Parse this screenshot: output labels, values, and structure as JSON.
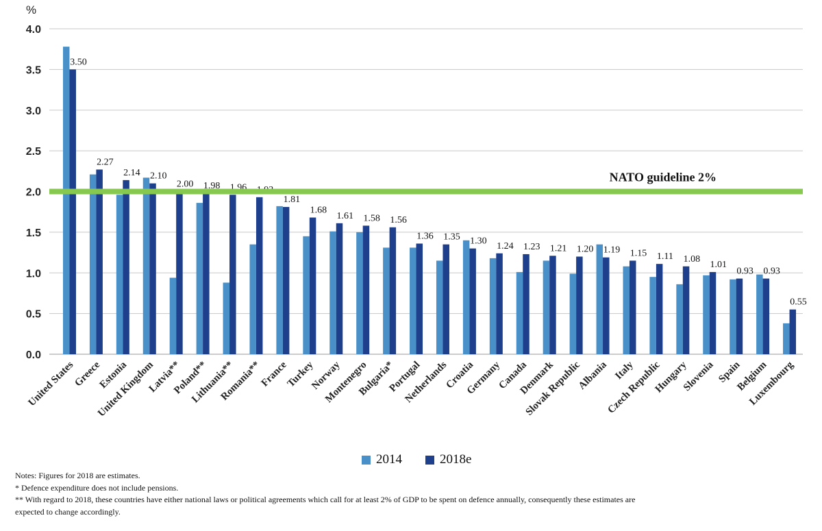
{
  "colors": {
    "s2014": "#4a90c8",
    "s2018": "#1e3f8c",
    "guideline": "#86c850",
    "grid": "#c8c8c8"
  },
  "chart_data": {
    "type": "bar",
    "ylabel": "%",
    "ylim": [
      0,
      4.0
    ],
    "yticks": [
      "0.0",
      "0.5",
      "1.0",
      "1.5",
      "2.0",
      "2.5",
      "3.0",
      "3.5",
      "4.0"
    ],
    "grid": true,
    "legend_position": "bottom",
    "categories": [
      "United States",
      "Greece",
      "Estonia",
      "United Kingdom",
      "Latvia**",
      "Poland**",
      "Lithuania**",
      "Romania**",
      "France",
      "Turkey",
      "Norway",
      "Montenegro",
      "Bulgaria*",
      "Portugal",
      "Netherlands",
      "Croatia",
      "Germany",
      "Canada",
      "Denmark",
      "Slovak Republic",
      "Albania",
      "Italy",
      "Czech Republic",
      "Hungary",
      "Slovenia",
      "Spain",
      "Belgium",
      "Luxembourg"
    ],
    "series": [
      {
        "name": "2014",
        "values": [
          3.78,
          2.21,
          1.96,
          2.17,
          0.94,
          1.86,
          0.88,
          1.35,
          1.82,
          1.45,
          1.51,
          1.5,
          1.31,
          1.31,
          1.15,
          1.4,
          1.18,
          1.01,
          1.15,
          0.99,
          1.35,
          1.08,
          0.95,
          0.86,
          0.97,
          0.92,
          0.98,
          0.38
        ]
      },
      {
        "name": "2018e",
        "values": [
          3.5,
          2.27,
          2.14,
          2.1,
          2.0,
          1.98,
          1.96,
          1.93,
          1.81,
          1.68,
          1.61,
          1.58,
          1.56,
          1.36,
          1.35,
          1.3,
          1.24,
          1.23,
          1.21,
          1.2,
          1.19,
          1.15,
          1.11,
          1.08,
          1.01,
          0.93,
          0.93,
          0.55
        ]
      }
    ],
    "data_labels": [
      "3.50",
      "2.27",
      "2.14",
      "2.10",
      "2.00",
      "1.98",
      "1.96",
      "1.93",
      "1.81",
      "1.68",
      "1.61",
      "1.58",
      "1.56",
      "1.36",
      "1.35",
      "1.30",
      "1.24",
      "1.23",
      "1.21",
      "1.20",
      "1.19",
      "1.15",
      "1.11",
      "1.08",
      "1.01",
      "0.93",
      "0.93",
      "0.55"
    ],
    "guideline": {
      "value": 2.0,
      "label": "NATO guideline 2%"
    }
  },
  "legend": {
    "items": [
      "2014",
      "2018e"
    ]
  },
  "notes": [
    "Notes: Figures for 2018 are estimates.",
    "*   Defence expenditure does not include pensions.",
    "**  With regard to 2018, these countries have either national laws or political agreements which call for at least 2% of GDP to be spent on defence annually, consequently these estimates are",
    "expected to change accordingly."
  ]
}
